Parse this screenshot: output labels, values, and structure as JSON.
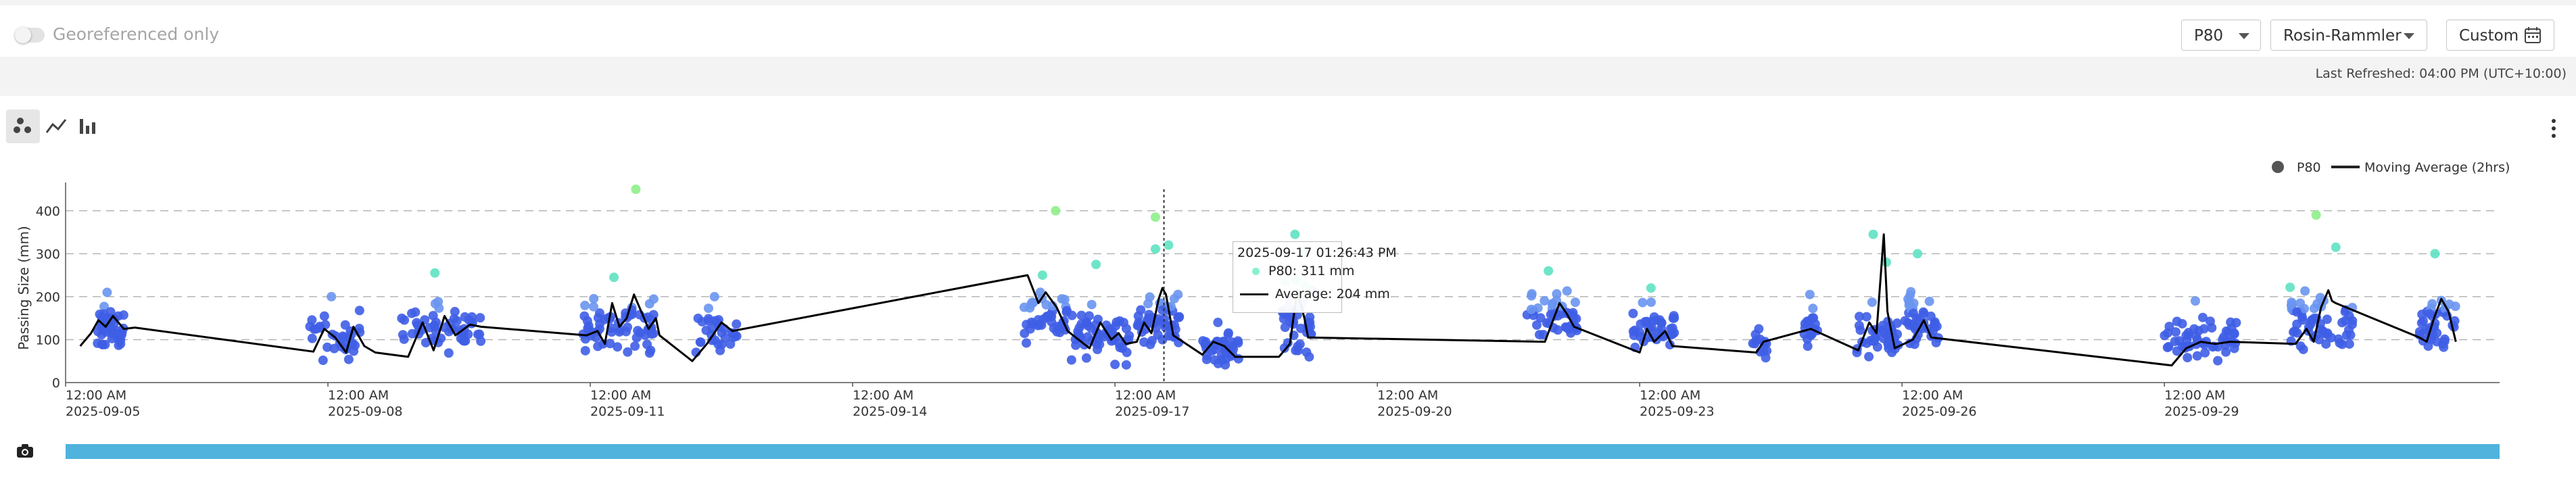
{
  "toolbar": {
    "georeferenced_label": "Georeferenced only",
    "georeferenced_on": false,
    "metric_select": "P80",
    "model_select": "Rosin-Rammler",
    "range_button": "Custom",
    "icons": [
      "toggle-switch",
      "chevron-down-icon",
      "calendar-icon"
    ]
  },
  "status": {
    "last_refreshed": "Last Refreshed: 04:00 PM (UTC+10:00)"
  },
  "chart_tools": {
    "icons": [
      "scatter-icon",
      "line-chart-icon",
      "bar-chart-icon",
      "more-vertical-icon",
      "camera-icon"
    ],
    "active": "scatter-icon"
  },
  "tooltip": {
    "time": "2025-09-17  01:26:43 PM",
    "p80_label": "P80:  311 mm",
    "avg_label": "Average:  204 mm"
  },
  "colors": {
    "low": "#3f5ee6",
    "mid": "#6a95f0",
    "high": "#5ee2c2",
    "top": "#8ef08a",
    "range_bar": "#4fb3de",
    "average_line": "#000000"
  },
  "chart_data": {
    "type": "scatter",
    "ylabel": "Passing Size (mm)",
    "ylim": [
      0,
      450
    ],
    "yticks": [
      0,
      100,
      200,
      300,
      400
    ],
    "xlim": [
      "2025-09-05 00:00",
      "2025-10-02 20:00"
    ],
    "xticks": [
      {
        "t": "2025-09-05 00:00",
        "line1": "12:00 AM",
        "line2": "2025-09-05"
      },
      {
        "t": "2025-09-08 00:00",
        "line1": "12:00 AM",
        "line2": "2025-09-08"
      },
      {
        "t": "2025-09-11 00:00",
        "line1": "12:00 AM",
        "line2": "2025-09-11"
      },
      {
        "t": "2025-09-14 00:00",
        "line1": "12:00 AM",
        "line2": "2025-09-14"
      },
      {
        "t": "2025-09-17 00:00",
        "line1": "12:00 AM",
        "line2": "2025-09-17"
      },
      {
        "t": "2025-09-20 00:00",
        "line1": "12:00 AM",
        "line2": "2025-09-20"
      },
      {
        "t": "2025-09-23 00:00",
        "line1": "12:00 AM",
        "line2": "2025-09-23"
      },
      {
        "t": "2025-09-26 00:00",
        "line1": "12:00 AM",
        "line2": "2025-09-26"
      },
      {
        "t": "2025-09-29 00:00",
        "line1": "12:00 AM",
        "line2": "2025-09-29"
      }
    ],
    "grid": "horizontal-dashed",
    "legend": {
      "position": "top-right",
      "entries": [
        "P80",
        "Moving Average (2hrs)"
      ]
    },
    "hover_time": "2025-09-17 13:26",
    "series": [
      {
        "name": "P80",
        "clusters": [
          {
            "t": "2025-09-05 12:00",
            "hw": 4,
            "c": 125,
            "s": 38,
            "n": 46,
            "peaks": [
              210
            ]
          },
          {
            "t": "2025-09-08 02:00",
            "hw": 7,
            "c": 110,
            "s": 42,
            "n": 32,
            "peaks": [
              200
            ]
          },
          {
            "t": "2025-09-09 07:00",
            "hw": 11,
            "c": 125,
            "s": 45,
            "n": 55,
            "peaks": [
              255
            ]
          },
          {
            "t": "2025-09-11 08:00",
            "hw": 10,
            "c": 135,
            "s": 48,
            "n": 64,
            "peaks": [
              245,
              450
            ]
          },
          {
            "t": "2025-09-12 11:00",
            "hw": 6,
            "c": 115,
            "s": 45,
            "n": 30,
            "peaks": [
              200
            ]
          },
          {
            "t": "2025-09-16 05:00",
            "hw": 6,
            "c": 160,
            "s": 50,
            "n": 40,
            "peaks": [
              250,
              400
            ]
          },
          {
            "t": "2025-09-16 20:00",
            "hw": 8,
            "c": 110,
            "s": 45,
            "n": 60,
            "peaks": [
              275
            ]
          },
          {
            "t": "2025-09-17 12:00",
            "hw": 6,
            "c": 145,
            "s": 55,
            "n": 50,
            "peaks": [
              385,
              320,
              311
            ]
          },
          {
            "t": "2025-09-18 05:00",
            "hw": 5,
            "c": 80,
            "s": 30,
            "n": 36,
            "peaks": [
              140
            ]
          },
          {
            "t": "2025-09-19 02:00",
            "hw": 4,
            "c": 145,
            "s": 70,
            "n": 44,
            "peaks": [
              345,
              300
            ]
          },
          {
            "t": "2025-09-22 00:00",
            "hw": 7,
            "c": 150,
            "s": 45,
            "n": 48,
            "peaks": [
              260
            ]
          },
          {
            "t": "2025-09-23 04:00",
            "hw": 6,
            "c": 120,
            "s": 45,
            "n": 40,
            "peaks": [
              220
            ]
          },
          {
            "t": "2025-09-24 09:00",
            "hw": 2,
            "c": 80,
            "s": 25,
            "n": 12,
            "peaks": [
              125
            ]
          },
          {
            "t": "2025-09-24 23:00",
            "hw": 2,
            "c": 135,
            "s": 40,
            "n": 16,
            "peaks": [
              205
            ]
          },
          {
            "t": "2025-09-25 17:00",
            "hw": 6,
            "c": 115,
            "s": 48,
            "n": 44,
            "peaks": [
              345,
              280
            ]
          },
          {
            "t": "2025-09-26 05:00",
            "hw": 5,
            "c": 145,
            "s": 50,
            "n": 40,
            "peaks": [
              300
            ]
          },
          {
            "t": "2025-09-29 10:00",
            "hw": 10,
            "c": 100,
            "s": 35,
            "n": 55,
            "peaks": [
              190
            ]
          },
          {
            "t": "2025-09-30 19:00",
            "hw": 9,
            "c": 140,
            "s": 55,
            "n": 60,
            "peaks": [
              390,
              315
            ]
          },
          {
            "t": "2025-10-02 03:00",
            "hw": 5,
            "c": 135,
            "s": 45,
            "n": 40,
            "peaks": [
              300
            ]
          }
        ]
      },
      {
        "name": "Moving Average (2hrs)",
        "points": [
          [
            "2025-09-05 04:00",
            85
          ],
          [
            "2025-09-05 07:00",
            115
          ],
          [
            "2025-09-05 09:00",
            145
          ],
          [
            "2025-09-05 11:00",
            130
          ],
          [
            "2025-09-05 13:00",
            155
          ],
          [
            "2025-09-05 16:00",
            125
          ],
          [
            "2025-09-05 19:00",
            128
          ],
          [
            "2025-09-07 20:00",
            72
          ],
          [
            "2025-09-07 23:00",
            125
          ],
          [
            "2025-09-08 02:00",
            105
          ],
          [
            "2025-09-08 05:00",
            70
          ],
          [
            "2025-09-08 07:00",
            130
          ],
          [
            "2025-09-08 10:00",
            85
          ],
          [
            "2025-09-08 13:00",
            70
          ],
          [
            "2025-09-08 22:00",
            60
          ],
          [
            "2025-09-09 02:00",
            140
          ],
          [
            "2025-09-09 05:00",
            75
          ],
          [
            "2025-09-09 08:00",
            155
          ],
          [
            "2025-09-09 11:00",
            110
          ],
          [
            "2025-09-09 15:00",
            135
          ],
          [
            "2025-09-09 18:00",
            130
          ],
          [
            "2025-09-10 23:00",
            110
          ],
          [
            "2025-09-11 02:00",
            120
          ],
          [
            "2025-09-11 04:00",
            90
          ],
          [
            "2025-09-11 06:00",
            185
          ],
          [
            "2025-09-11 08:00",
            130
          ],
          [
            "2025-09-11 10:00",
            150
          ],
          [
            "2025-09-11 12:00",
            205
          ],
          [
            "2025-09-11 14:00",
            165
          ],
          [
            "2025-09-11 16:00",
            125
          ],
          [
            "2025-09-11 18:00",
            150
          ],
          [
            "2025-09-11 19:00",
            110
          ],
          [
            "2025-09-12 04:00",
            50
          ],
          [
            "2025-09-12 08:00",
            90
          ],
          [
            "2025-09-12 12:00",
            140
          ],
          [
            "2025-09-12 15:00",
            120
          ],
          [
            "2025-09-16 00:00",
            250
          ],
          [
            "2025-09-16 03:00",
            185
          ],
          [
            "2025-09-16 05:00",
            210
          ],
          [
            "2025-09-16 08:00",
            175
          ],
          [
            "2025-09-16 11:00",
            120
          ],
          [
            "2025-09-16 14:00",
            100
          ],
          [
            "2025-09-16 17:00",
            80
          ],
          [
            "2025-09-16 20:00",
            140
          ],
          [
            "2025-09-16 23:00",
            100
          ],
          [
            "2025-09-17 01:00",
            115
          ],
          [
            "2025-09-17 03:00",
            90
          ],
          [
            "2025-09-17 06:00",
            95
          ],
          [
            "2025-09-17 08:00",
            140
          ],
          [
            "2025-09-17 10:00",
            115
          ],
          [
            "2025-09-17 12:00",
            195
          ],
          [
            "2025-09-17 13:00",
            220
          ],
          [
            "2025-09-17 14:00",
            205
          ],
          [
            "2025-09-17 16:00",
            110
          ],
          [
            "2025-09-18 00:00",
            65
          ],
          [
            "2025-09-18 03:00",
            95
          ],
          [
            "2025-09-18 06:00",
            85
          ],
          [
            "2025-09-18 09:00",
            60
          ],
          [
            "2025-09-18 21:00",
            60
          ],
          [
            "2025-09-19 00:00",
            90
          ],
          [
            "2025-09-19 02:00",
            215
          ],
          [
            "2025-09-19 04:00",
            150
          ],
          [
            "2025-09-19 05:00",
            105
          ],
          [
            "2025-09-21 22:00",
            95
          ],
          [
            "2025-09-22 00:00",
            140
          ],
          [
            "2025-09-22 02:00",
            185
          ],
          [
            "2025-09-22 04:00",
            160
          ],
          [
            "2025-09-22 06:00",
            130
          ],
          [
            "2025-09-23 00:00",
            70
          ],
          [
            "2025-09-23 02:00",
            125
          ],
          [
            "2025-09-23 04:00",
            95
          ],
          [
            "2025-09-23 07:00",
            120
          ],
          [
            "2025-09-23 09:00",
            85
          ],
          [
            "2025-09-24 08:00",
            70
          ],
          [
            "2025-09-24 10:00",
            95
          ],
          [
            "2025-09-24 23:00",
            125
          ],
          [
            "2025-09-25 12:00",
            75
          ],
          [
            "2025-09-25 15:00",
            140
          ],
          [
            "2025-09-25 17:00",
            115
          ],
          [
            "2025-09-25 19:00",
            345
          ],
          [
            "2025-09-25 20:00",
            165
          ],
          [
            "2025-09-25 22:00",
            80
          ],
          [
            "2025-09-26 03:00",
            100
          ],
          [
            "2025-09-26 06:00",
            145
          ],
          [
            "2025-09-26 08:00",
            105
          ],
          [
            "2025-09-29 02:00",
            40
          ],
          [
            "2025-09-29 06:00",
            80
          ],
          [
            "2025-09-29 10:00",
            95
          ],
          [
            "2025-09-29 14:00",
            90
          ],
          [
            "2025-09-29 18:00",
            95
          ],
          [
            "2025-09-30 12:00",
            90
          ],
          [
            "2025-09-30 15:00",
            125
          ],
          [
            "2025-09-30 17:00",
            95
          ],
          [
            "2025-09-30 19:00",
            175
          ],
          [
            "2025-09-30 21:00",
            215
          ],
          [
            "2025-09-30 22:00",
            190
          ],
          [
            "2025-09-30 23:00",
            185
          ],
          [
            "2025-10-01 22:00",
            105
          ],
          [
            "2025-10-02 00:00",
            95
          ],
          [
            "2025-10-02 02:00",
            150
          ],
          [
            "2025-10-02 04:00",
            195
          ],
          [
            "2025-10-02 06:00",
            165
          ],
          [
            "2025-10-02 08:00",
            95
          ]
        ]
      }
    ]
  }
}
